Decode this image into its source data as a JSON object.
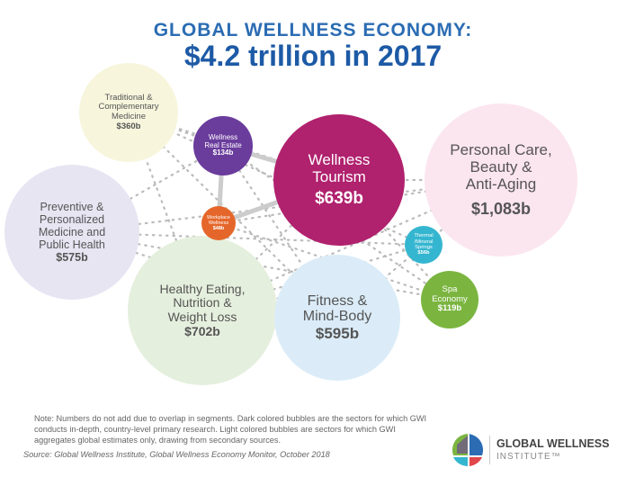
{
  "title": {
    "line1": "GLOBAL WELLNESS ECONOMY:",
    "line2": "$4.2 trillion in 2017"
  },
  "bubbles": {
    "traditional": {
      "name": "Traditional &\nComplementary\nMedicine",
      "value": "$360b",
      "color": "#f7f5dc"
    },
    "real_estate": {
      "name": "Wellness\nReal Estate",
      "value": "$134b",
      "color": "#6a3c9c"
    },
    "tourism": {
      "name": "Wellness\nTourism",
      "value": "$639b",
      "color": "#b0216e"
    },
    "personal_care": {
      "name": "Personal Care,\nBeauty &\nAnti-Aging",
      "value": "$1,083b",
      "color": "#fbe5ee"
    },
    "preventive": {
      "name": "Preventive &\nPersonalized\nMedicine and\nPublic Health",
      "value": "$575b",
      "color": "#e7e5f2"
    },
    "workplace": {
      "name": "Workplace\nWellness",
      "value": "$48b",
      "color": "#e5662a"
    },
    "thermal": {
      "name": "Thermal\n/Mineral\nSprings",
      "value": "$56b",
      "color": "#35b6d0"
    },
    "spa": {
      "name": "Spa\nEconomy",
      "value": "$119b",
      "color": "#7bb540"
    },
    "healthy_eating": {
      "name": "Healthy Eating,\nNutrition &\nWeight Loss",
      "value": "$702b",
      "color": "#e5efdd"
    },
    "fitness": {
      "name": "Fitness &\nMind-Body",
      "value": "$595b",
      "color": "#dbecf8"
    }
  },
  "footer": {
    "note": "Note: Numbers do not add due to overlap in segments. Dark colored bubbles are the sectors for which GWI conducts in-depth, country-level primary research. Light colored bubbles are sectors for which GWI aggregates global estimates only, drawing from secondary sources.",
    "source": "Source: Global Wellness Institute, Global Wellness Economy Monitor, October 2018",
    "logo_title": "GLOBAL WELLNESS",
    "logo_subtitle": "INSTITUTE™"
  }
}
